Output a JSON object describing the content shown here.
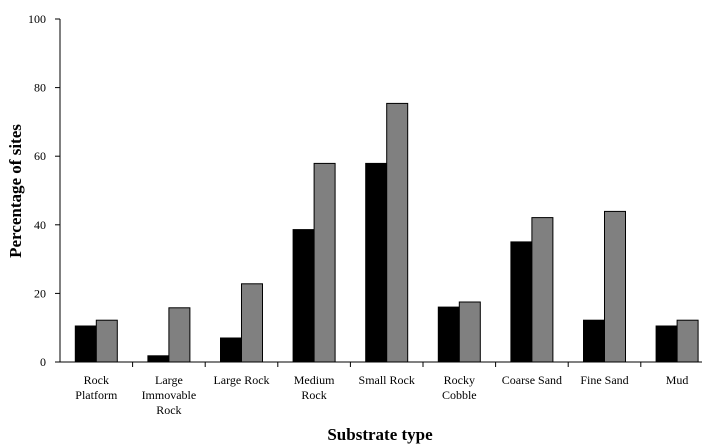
{
  "chart_data": {
    "type": "bar",
    "title": "",
    "xlabel": "Substrate type",
    "ylabel": "Percentage of sites",
    "ylim": [
      0,
      100
    ],
    "yticks": [
      0,
      20,
      40,
      60,
      80,
      100
    ],
    "grid": false,
    "legend": "none",
    "categories": [
      [
        "Rock",
        "Platform"
      ],
      [
        "Large",
        "Immovable",
        "Rock"
      ],
      [
        "Large Rock"
      ],
      [
        "Medium",
        "Rock"
      ],
      [
        "Small Rock"
      ],
      [
        "Rocky",
        "Cobble"
      ],
      [
        "Coarse Sand"
      ],
      [
        "Fine Sand"
      ],
      [
        "Mud"
      ]
    ],
    "series": [
      {
        "color": "#000000",
        "values": [
          10.5,
          1.8,
          7.0,
          38.6,
          57.9,
          16.0,
          35.0,
          12.2,
          10.5
        ]
      },
      {
        "color": "#808080",
        "values": [
          12.2,
          15.8,
          22.8,
          57.9,
          75.4,
          17.5,
          42.1,
          43.9,
          12.2
        ]
      }
    ]
  }
}
